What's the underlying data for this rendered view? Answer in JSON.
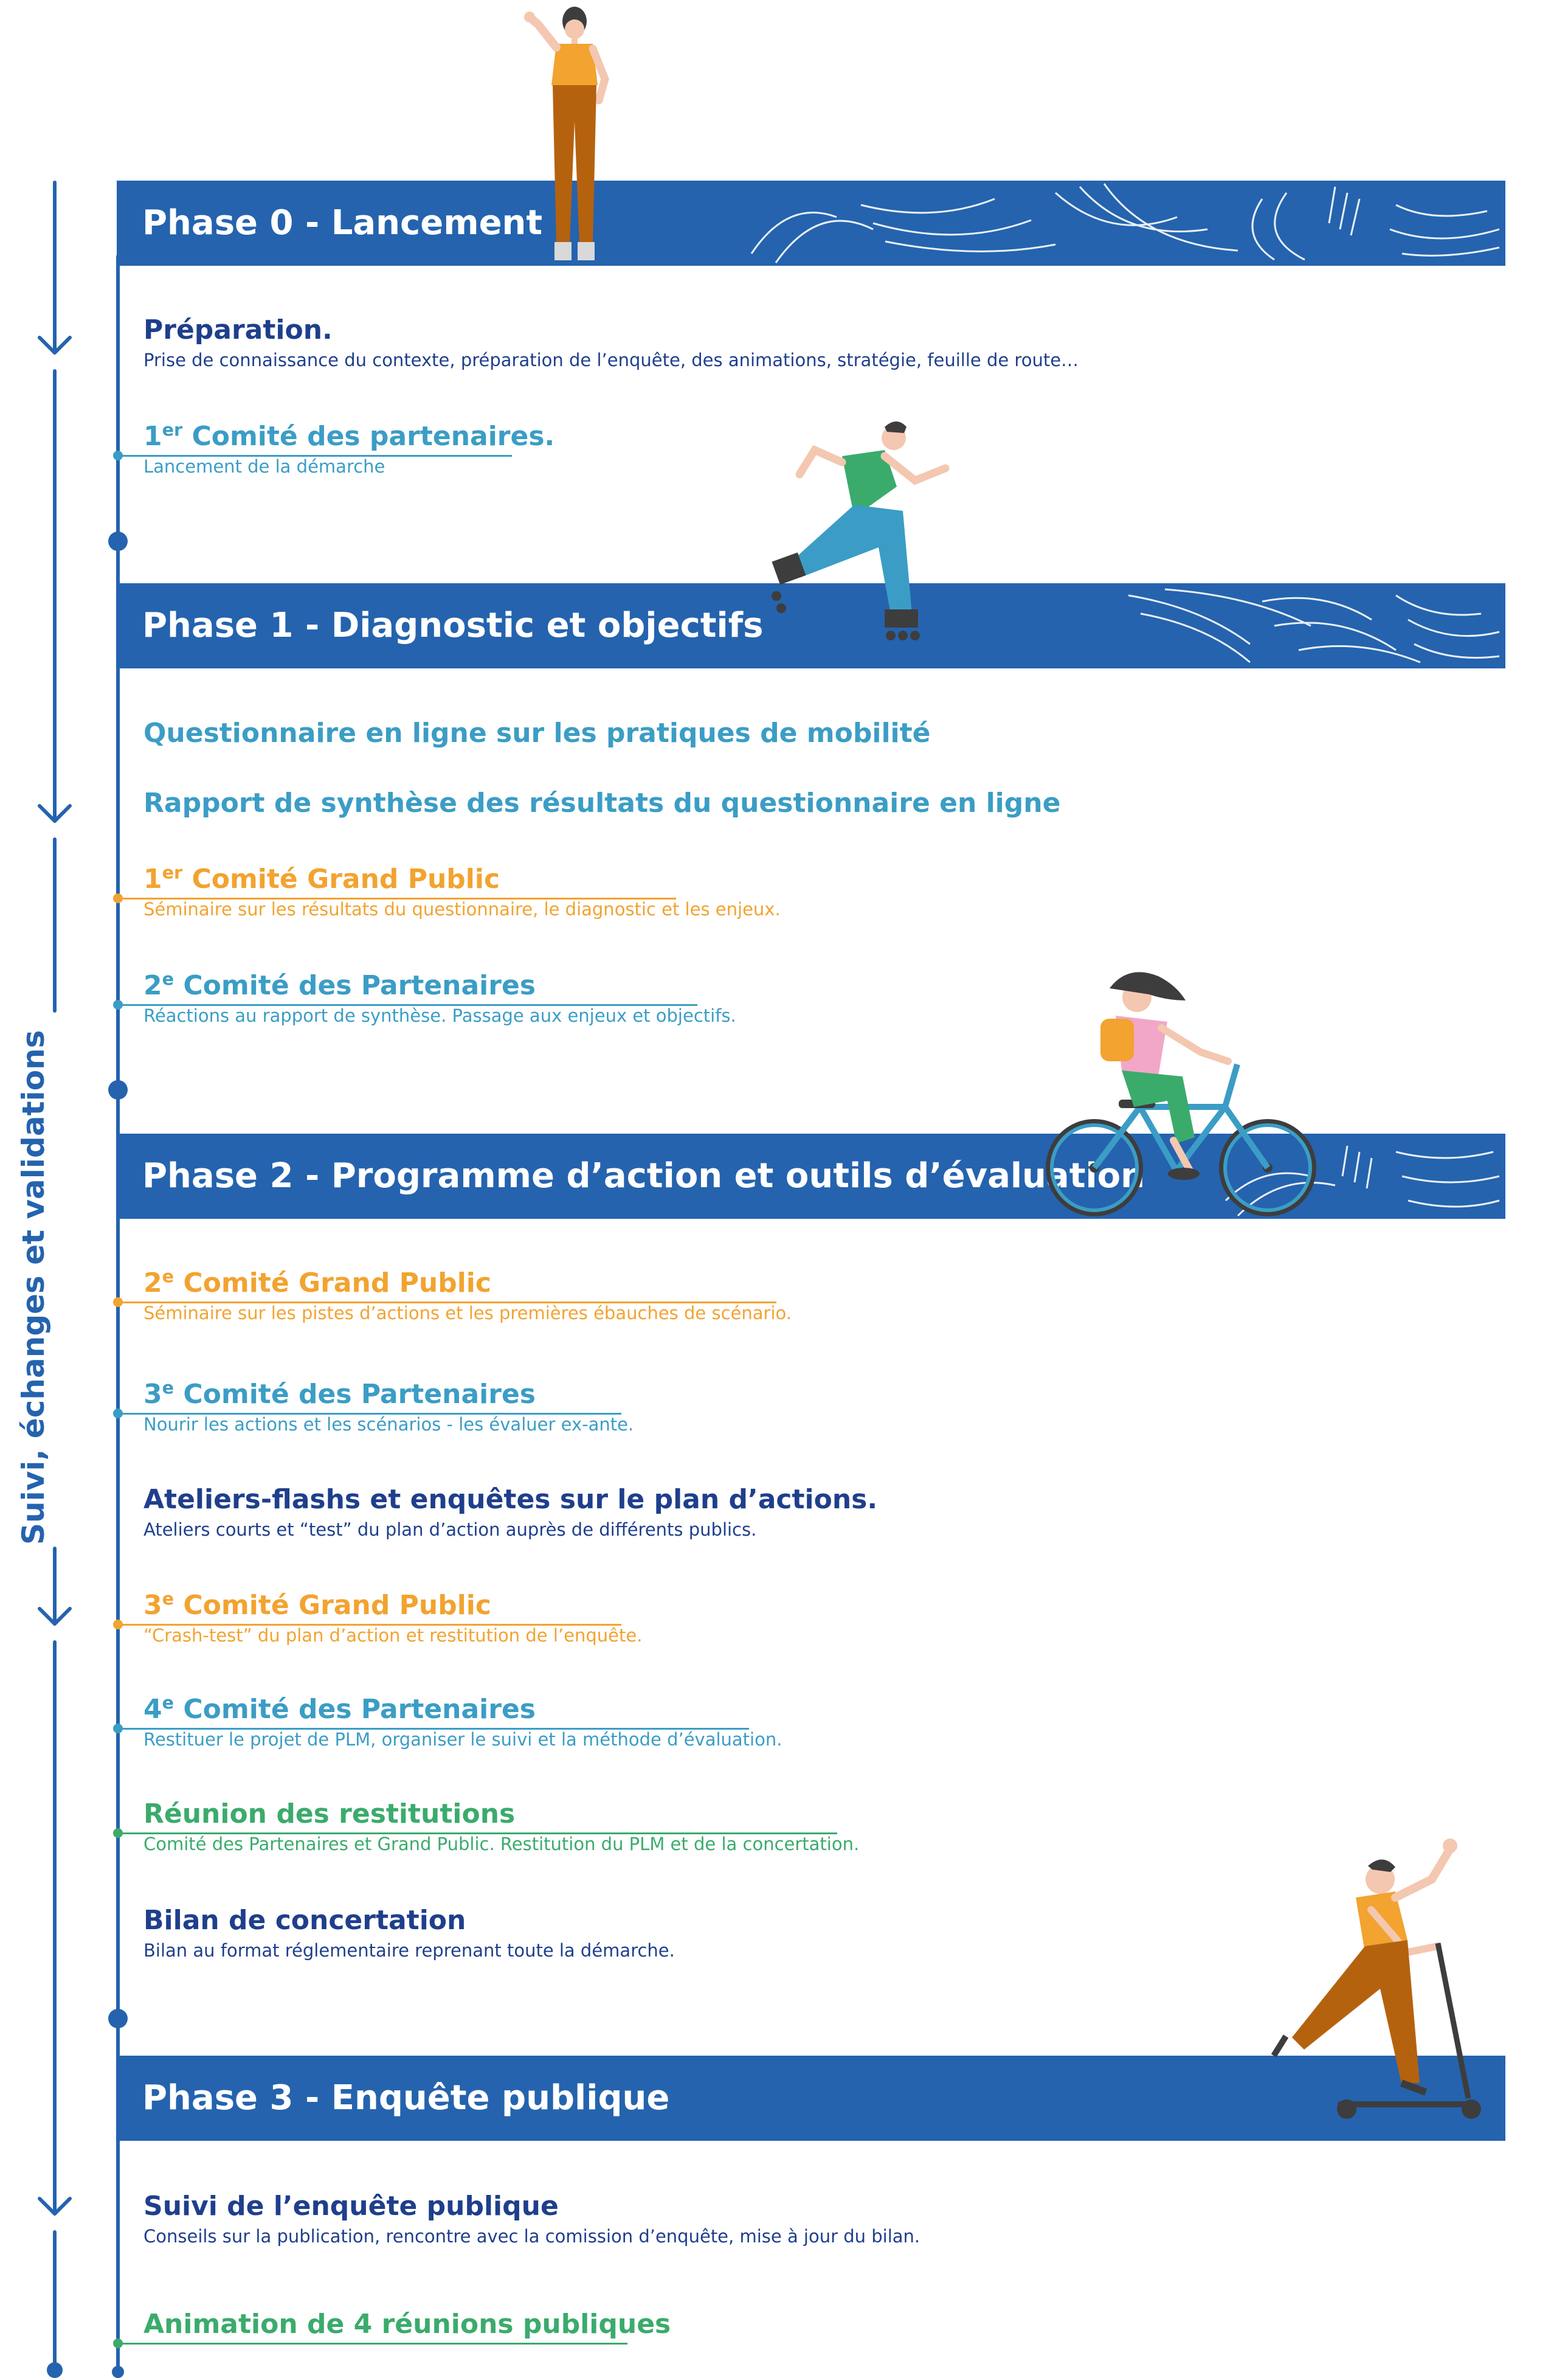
{
  "side_label": "Suivi, échanges et validations",
  "phases": [
    {
      "title": "Phase 0 - Lancement"
    },
    {
      "title": "Phase 1 - Diagnostic et objectifs"
    },
    {
      "title": "Phase 2 - Programme d’action et outils d’évaluation"
    },
    {
      "title": "Phase 3 - Enquête publique"
    }
  ],
  "items": [
    {
      "title_pre": "Préparation.",
      "sup": "",
      "title_post": "",
      "desc": "Prise de connaissance du contexte, préparation de l’enquête, des animations, stratégie, feuille de route…",
      "color": "#1f3f8c"
    },
    {
      "title_pre": "1",
      "sup": "er",
      "title_post": " Comité des partenaires.",
      "desc": "Lancement de la démarche",
      "color": "#3b9dc5"
    },
    {
      "title_pre": "Questionnaire en ligne sur les pratiques de mobilité",
      "sup": "",
      "title_post": "",
      "desc": "",
      "color": "#3b9dc5"
    },
    {
      "title_pre": "Rapport de synthèse des résultats du questionnaire en ligne",
      "sup": "",
      "title_post": "",
      "desc": "",
      "color": "#3b9dc5"
    },
    {
      "title_pre": "1",
      "sup": "er",
      "title_post": " Comité Grand Public",
      "desc": "Séminaire sur les résultats du questionnaire, le diagnostic et les enjeux.",
      "color": "#f2a330"
    },
    {
      "title_pre": "2",
      "sup": "e",
      "title_post": " Comité des Partenaires",
      "desc": "Réactions au rapport de synthèse. Passage aux enjeux et objectifs.",
      "color": "#3b9dc5"
    },
    {
      "title_pre": "2",
      "sup": "e",
      "title_post": " Comité Grand Public",
      "desc": "Séminaire sur les pistes d’actions et les premières ébauches de scénario.",
      "color": "#f2a330"
    },
    {
      "title_pre": "3",
      "sup": "e",
      "title_post": " Comité des Partenaires",
      "desc": "Nourir les actions et les scénarios - les évaluer ex-ante.",
      "color": "#3b9dc5"
    },
    {
      "title_pre": "Ateliers-flashs et enquêtes sur le plan d’actions.",
      "sup": "",
      "title_post": "",
      "desc": "Ateliers courts et “test” du plan d’action auprès de différents publics.",
      "color": "#1f3f8c"
    },
    {
      "title_pre": "3",
      "sup": "e",
      "title_post": " Comité Grand Public",
      "desc": "“Crash-test” du plan d’action et restitution de l’enquête.",
      "color": "#f2a330"
    },
    {
      "title_pre": "4",
      "sup": "e",
      "title_post": " Comité des Partenaires",
      "desc": "Restituer le projet de PLM, organiser le suivi et la méthode d’évaluation.",
      "color": "#3b9dc5"
    },
    {
      "title_pre": "Réunion des restitutions",
      "sup": "",
      "title_post": "",
      "desc": "Comité des Partenaires et Grand Public. Restitution du PLM et de la concertation.",
      "color": "#3bab6c"
    },
    {
      "title_pre": "Bilan de concertation",
      "sup": "",
      "title_post": "",
      "desc": "Bilan au format réglementaire reprenant toute la démarche.",
      "color": "#1f3f8c"
    },
    {
      "title_pre": "Suivi de l’enquête publique",
      "sup": "",
      "title_post": "",
      "desc": "Conseils sur la publication, rencontre avec la comission d’enquête, mise à jour du bilan.",
      "color": "#1f3f8c"
    },
    {
      "title_pre": "Animation de 4 réunions publiques",
      "sup": "",
      "title_post": "",
      "desc": "",
      "color": "#3bab6c"
    }
  ],
  "colors": {
    "primary": "#2563ae",
    "navy": "#1f3f8c",
    "teal": "#3b9dc5",
    "orange": "#f2a330",
    "green": "#3bab6c"
  },
  "illustrations": [
    "woman-waving",
    "rollerblader",
    "cyclist",
    "scooter-rider"
  ]
}
